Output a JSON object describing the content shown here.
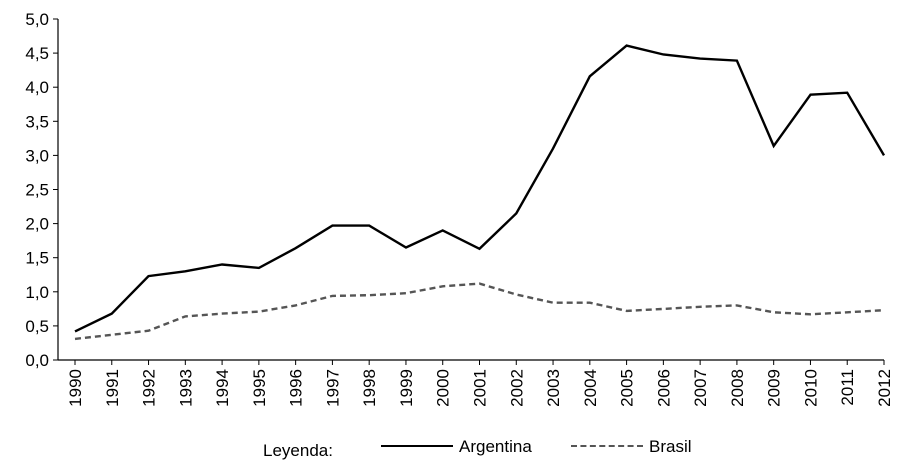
{
  "chart_data": {
    "type": "line",
    "title": "",
    "xlabel": "",
    "ylabel": "",
    "categories": [
      "1990",
      "1991",
      "1992",
      "1993",
      "1994",
      "1995",
      "1996",
      "1997",
      "1998",
      "1999",
      "2000",
      "2001",
      "2002",
      "2003",
      "2004",
      "2005",
      "2006",
      "2007",
      "2008",
      "2009",
      "2010",
      "2011",
      "2012"
    ],
    "ylim": [
      0,
      5
    ],
    "yticks": [
      "0,0",
      "0,5",
      "1,0",
      "1,5",
      "2,0",
      "2,5",
      "3,0",
      "3,5",
      "4,0",
      "4,5",
      "5,0"
    ],
    "grid": false,
    "legend_position": "bottom",
    "legend_title": "Leyenda:",
    "series": [
      {
        "name": "Argentina",
        "style": "solid",
        "color": "#000000",
        "values": [
          0.42,
          0.68,
          1.23,
          1.3,
          1.4,
          1.35,
          1.64,
          1.97,
          1.97,
          1.65,
          1.9,
          1.63,
          2.15,
          3.1,
          4.16,
          4.61,
          4.48,
          4.42,
          4.39,
          3.14,
          3.89,
          3.92,
          3.0
        ]
      },
      {
        "name": "Brasil",
        "style": "dashed",
        "color": "#555555",
        "values": [
          0.31,
          0.37,
          0.43,
          0.64,
          0.68,
          0.71,
          0.8,
          0.94,
          0.95,
          0.98,
          1.08,
          1.12,
          0.96,
          0.84,
          0.84,
          0.72,
          0.75,
          0.78,
          0.8,
          0.7,
          0.67,
          0.7,
          0.73
        ]
      }
    ]
  }
}
